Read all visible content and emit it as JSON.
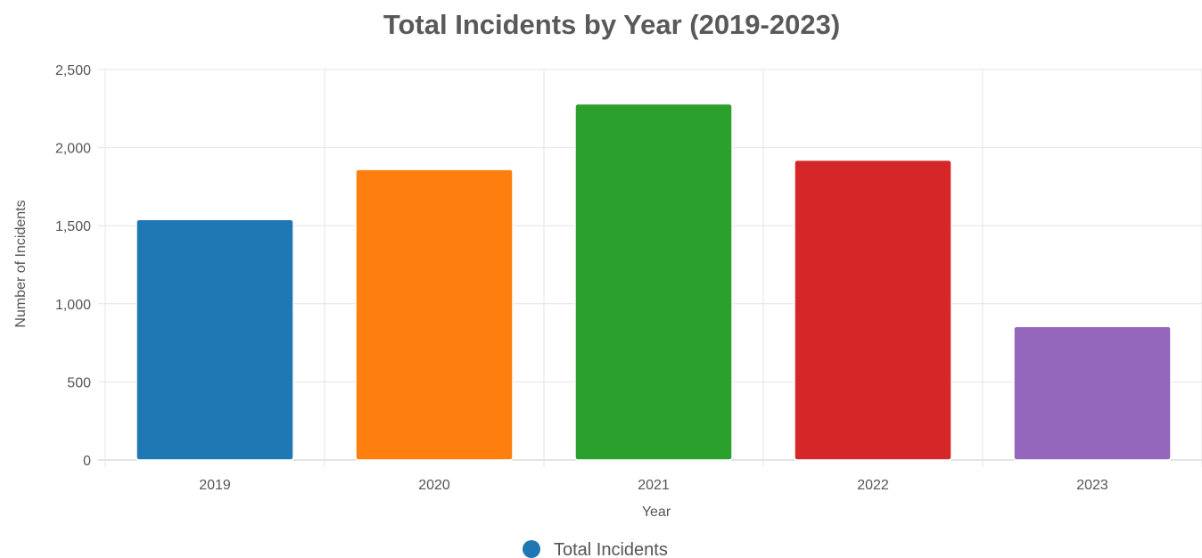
{
  "chart_data": {
    "type": "bar",
    "title": "Total Incidents by Year (2019-2023)",
    "xlabel": "Year",
    "ylabel": "Number of Incidents",
    "categories": [
      "2019",
      "2020",
      "2021",
      "2022",
      "2023"
    ],
    "series": [
      {
        "name": "Total Incidents",
        "values": [
          1540,
          1860,
          2280,
          1920,
          855
        ]
      }
    ],
    "ylim": [
      0,
      2500
    ],
    "yticks": [
      0,
      500,
      1000,
      1500,
      2000,
      2500
    ],
    "ytick_labels": [
      "0",
      "500",
      "1,000",
      "1,500",
      "2,000",
      "2,500"
    ],
    "bar_colors": [
      "#1f77b4",
      "#ff7f0e",
      "#2ca02c",
      "#d62728",
      "#9467bd"
    ],
    "legend_color": "#1f77b4",
    "grid": true,
    "legend_position": "bottom"
  }
}
